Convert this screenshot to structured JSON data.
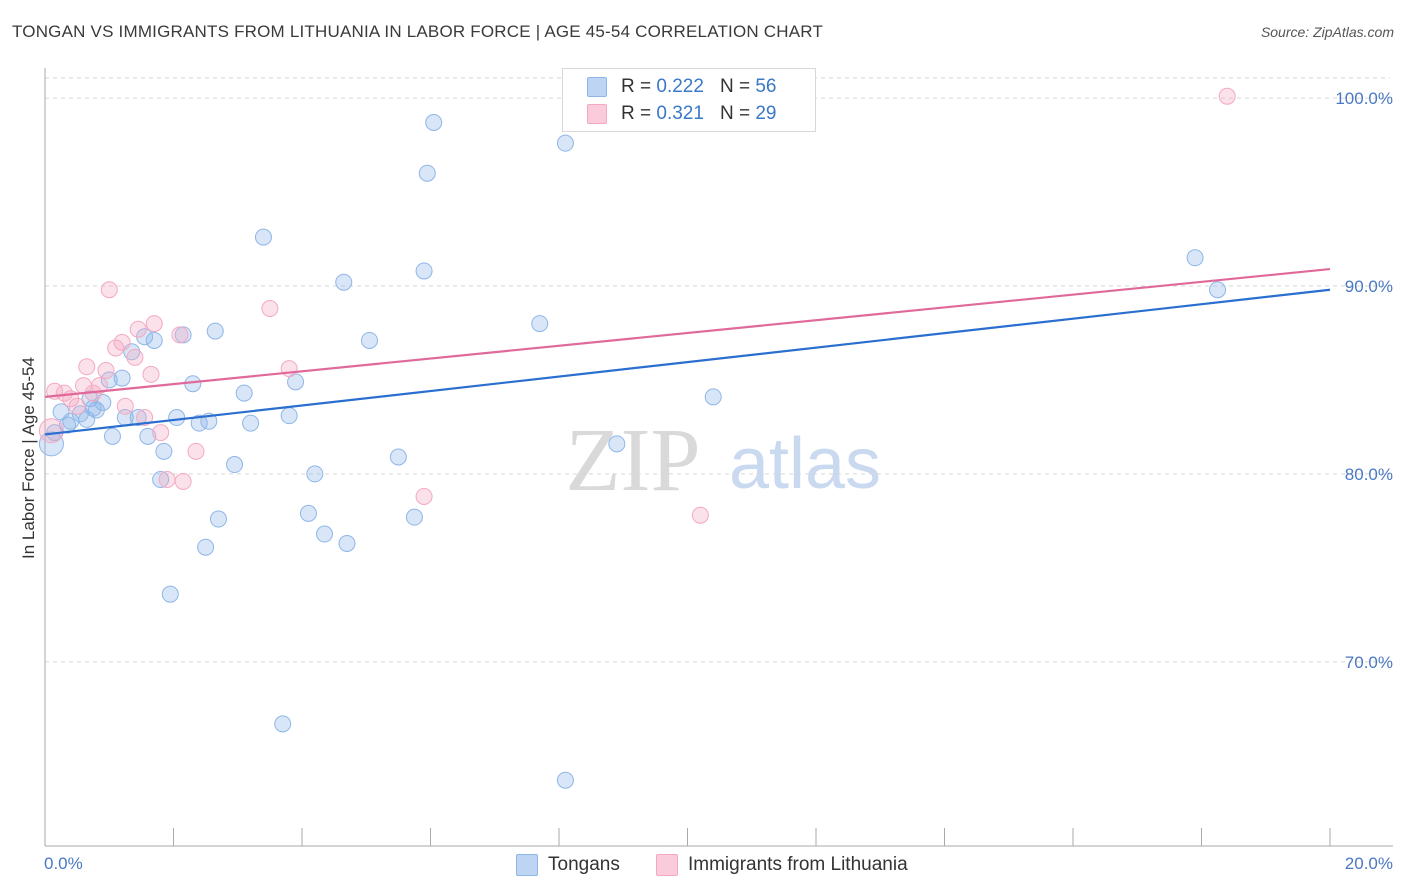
{
  "header": {
    "title": "TONGAN VS IMMIGRANTS FROM LITHUANIA IN LABOR FORCE | AGE 45-54 CORRELATION CHART",
    "source": "Source: ZipAtlas.com"
  },
  "watermark": {
    "zip": "ZIP",
    "atlas": "atlas"
  },
  "legend": {
    "rows": [
      {
        "r_label": "R =",
        "r_value": "0.222",
        "n_label": "N =",
        "n_value": "56"
      },
      {
        "r_label": "R =",
        "r_value": "0.321",
        "n_label": "N =",
        "n_value": "29"
      }
    ]
  },
  "bottom_legend": {
    "series1": "Tongans",
    "series2": "Immigrants from Lithuania"
  },
  "chart_data": {
    "type": "scatter",
    "title": "TONGAN VS IMMIGRANTS FROM LITHUANIA IN LABOR FORCE | AGE 45-54 CORRELATION CHART",
    "xlabel": "",
    "ylabel": "In Labor Force | Age 45-54",
    "xlim": [
      0,
      20
    ],
    "ylim": [
      60.2,
      101.6
    ],
    "x_tick_labels": [
      "0.0%",
      "20.0%"
    ],
    "y_ticks": [
      70,
      80,
      90,
      100
    ],
    "y_tick_labels": [
      "70.0%",
      "80.0%",
      "90.0%",
      "100.0%"
    ],
    "grid": true,
    "colors": {
      "tongans": "#8fb6e8",
      "tongans_line": "#2a6fd0",
      "lithuania": "#f4a9c2",
      "lithuania_line": "#e0699a",
      "axis_text": "#4a78c2"
    },
    "series": [
      {
        "name": "Tongans",
        "R": 0.222,
        "N": 56,
        "trend": {
          "x": [
            0,
            20
          ],
          "y": [
            82.1,
            89.8
          ]
        },
        "points": [
          [
            0.1,
            81.6
          ],
          [
            0.15,
            82.2
          ],
          [
            0.25,
            83.3
          ],
          [
            0.35,
            82.6
          ],
          [
            0.4,
            82.8
          ],
          [
            0.55,
            83.2
          ],
          [
            0.65,
            82.9
          ],
          [
            0.7,
            84.0
          ],
          [
            0.75,
            83.5
          ],
          [
            0.8,
            83.4
          ],
          [
            0.9,
            83.8
          ],
          [
            1.0,
            85.0
          ],
          [
            1.05,
            82.0
          ],
          [
            1.2,
            85.1
          ],
          [
            1.25,
            83.0
          ],
          [
            1.35,
            86.5
          ],
          [
            1.45,
            83.0
          ],
          [
            1.55,
            87.3
          ],
          [
            1.6,
            82.0
          ],
          [
            1.7,
            87.1
          ],
          [
            1.8,
            79.7
          ],
          [
            1.85,
            81.2
          ],
          [
            1.95,
            73.6
          ],
          [
            2.05,
            83.0
          ],
          [
            2.15,
            87.4
          ],
          [
            2.3,
            84.8
          ],
          [
            2.4,
            82.7
          ],
          [
            2.5,
            76.1
          ],
          [
            2.55,
            82.8
          ],
          [
            2.65,
            87.6
          ],
          [
            2.7,
            77.6
          ],
          [
            2.95,
            80.5
          ],
          [
            3.1,
            84.3
          ],
          [
            3.2,
            82.7
          ],
          [
            3.4,
            92.6
          ],
          [
            3.7,
            66.7
          ],
          [
            3.8,
            83.1
          ],
          [
            3.9,
            84.9
          ],
          [
            4.1,
            77.9
          ],
          [
            4.2,
            80.0
          ],
          [
            4.35,
            76.8
          ],
          [
            4.65,
            90.2
          ],
          [
            4.7,
            76.3
          ],
          [
            5.05,
            87.1
          ],
          [
            5.5,
            80.9
          ],
          [
            5.75,
            77.7
          ],
          [
            5.9,
            90.8
          ],
          [
            5.95,
            96.0
          ],
          [
            6.05,
            98.7
          ],
          [
            7.7,
            88.0
          ],
          [
            8.1,
            97.6
          ],
          [
            8.1,
            63.7
          ],
          [
            8.9,
            81.6
          ],
          [
            10.4,
            84.1
          ],
          [
            17.9,
            91.5
          ],
          [
            18.25,
            89.8
          ]
        ]
      },
      {
        "name": "Immigrants from Lithuania",
        "R": 0.321,
        "N": 29,
        "trend": {
          "x": [
            0,
            20
          ],
          "y": [
            84.1,
            90.9
          ]
        },
        "points": [
          [
            0.1,
            82.3
          ],
          [
            0.15,
            84.4
          ],
          [
            0.3,
            84.3
          ],
          [
            0.4,
            84.0
          ],
          [
            0.5,
            83.6
          ],
          [
            0.6,
            84.7
          ],
          [
            0.65,
            85.7
          ],
          [
            0.75,
            84.3
          ],
          [
            0.85,
            84.7
          ],
          [
            0.95,
            85.5
          ],
          [
            1.0,
            89.8
          ],
          [
            1.1,
            86.7
          ],
          [
            1.2,
            87.0
          ],
          [
            1.25,
            83.6
          ],
          [
            1.4,
            86.2
          ],
          [
            1.45,
            87.7
          ],
          [
            1.55,
            83.0
          ],
          [
            1.65,
            85.3
          ],
          [
            1.7,
            88.0
          ],
          [
            1.8,
            82.2
          ],
          [
            1.9,
            79.7
          ],
          [
            2.1,
            87.4
          ],
          [
            2.15,
            79.6
          ],
          [
            2.35,
            81.2
          ],
          [
            3.5,
            88.8
          ],
          [
            3.8,
            85.6
          ],
          [
            5.9,
            78.8
          ],
          [
            10.2,
            77.8
          ],
          [
            18.4,
            100.1
          ]
        ]
      }
    ]
  }
}
